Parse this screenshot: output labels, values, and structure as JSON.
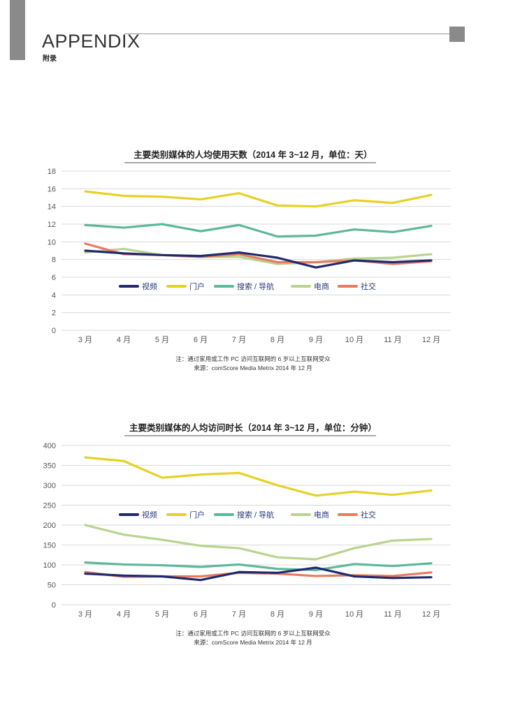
{
  "header": {
    "title": "APPENDIX",
    "subtitle": "附录"
  },
  "colors": {
    "视频": "#1f2a6e",
    "门户": "#e6d125",
    "搜索 / 导航": "#5cb898",
    "电商": "#b8d48e",
    "社交": "#e87a5e"
  },
  "chart_data": [
    {
      "type": "line",
      "title": "主要类别媒体的人均使用天数（2014 年 3~12 月，单位：天）",
      "categories": [
        "3 月",
        "4 月",
        "5 月",
        "6 月",
        "7 月",
        "8 月",
        "9 月",
        "10 月",
        "11 月",
        "12 月"
      ],
      "ylim": [
        0,
        18
      ],
      "yticks": [
        0,
        2,
        4,
        6,
        8,
        10,
        12,
        14,
        16,
        18
      ],
      "grid": true,
      "legend": "center",
      "series": [
        {
          "name": "视频",
          "values": [
            9.0,
            8.7,
            8.5,
            8.4,
            8.8,
            8.2,
            7.1,
            7.9,
            7.7,
            7.9
          ]
        },
        {
          "name": "门户",
          "values": [
            15.7,
            15.2,
            15.1,
            14.8,
            15.5,
            14.1,
            14.0,
            14.7,
            14.4,
            15.3
          ]
        },
        {
          "name": "搜索 / 导航",
          "values": [
            11.9,
            11.6,
            12.0,
            11.2,
            11.9,
            10.6,
            10.7,
            11.4,
            11.1,
            11.8
          ]
        },
        {
          "name": "电商",
          "values": [
            8.8,
            9.2,
            8.5,
            8.3,
            8.3,
            7.5,
            7.7,
            8.1,
            8.2,
            8.6
          ]
        },
        {
          "name": "社交",
          "values": [
            9.8,
            8.6,
            8.5,
            8.3,
            8.6,
            7.7,
            7.7,
            7.9,
            7.5,
            7.8
          ]
        }
      ],
      "notes": [
        "注：通过家用或工作 PC 访问互联网的 6 岁以上互联网受众",
        "来源：comScore Media Metrix 2014 年 12 月"
      ]
    },
    {
      "type": "line",
      "title": "主要类别媒体的人均访问时长（2014 年 3~12 月，单位：分钟）",
      "categories": [
        "3 月",
        "4 月",
        "5 月",
        "6 月",
        "7 月",
        "8 月",
        "9 月",
        "10 月",
        "11 月",
        "12 月"
      ],
      "ylim": [
        0,
        400
      ],
      "yticks": [
        0,
        50,
        100,
        150,
        200,
        250,
        300,
        350,
        400
      ],
      "grid": true,
      "legend": "center",
      "series": [
        {
          "name": "视频",
          "values": [
            78,
            73,
            71,
            62,
            82,
            80,
            93,
            71,
            67,
            69
          ]
        },
        {
          "name": "门户",
          "values": [
            370,
            361,
            319,
            327,
            331,
            300,
            274,
            284,
            276,
            287
          ]
        },
        {
          "name": "搜索 / 导航",
          "values": [
            106,
            101,
            99,
            95,
            101,
            90,
            87,
            102,
            97,
            104
          ]
        },
        {
          "name": "电商",
          "values": [
            200,
            176,
            163,
            148,
            142,
            119,
            114,
            142,
            161,
            165
          ]
        },
        {
          "name": "社交",
          "values": [
            82,
            70,
            71,
            71,
            80,
            78,
            72,
            74,
            72,
            81
          ]
        }
      ],
      "notes": [
        "注：通过家用或工作 PC 访问互联网的 6 岁以上互联网受众",
        "来源：comScore Media Metrix 2014 年 12 月"
      ]
    }
  ]
}
